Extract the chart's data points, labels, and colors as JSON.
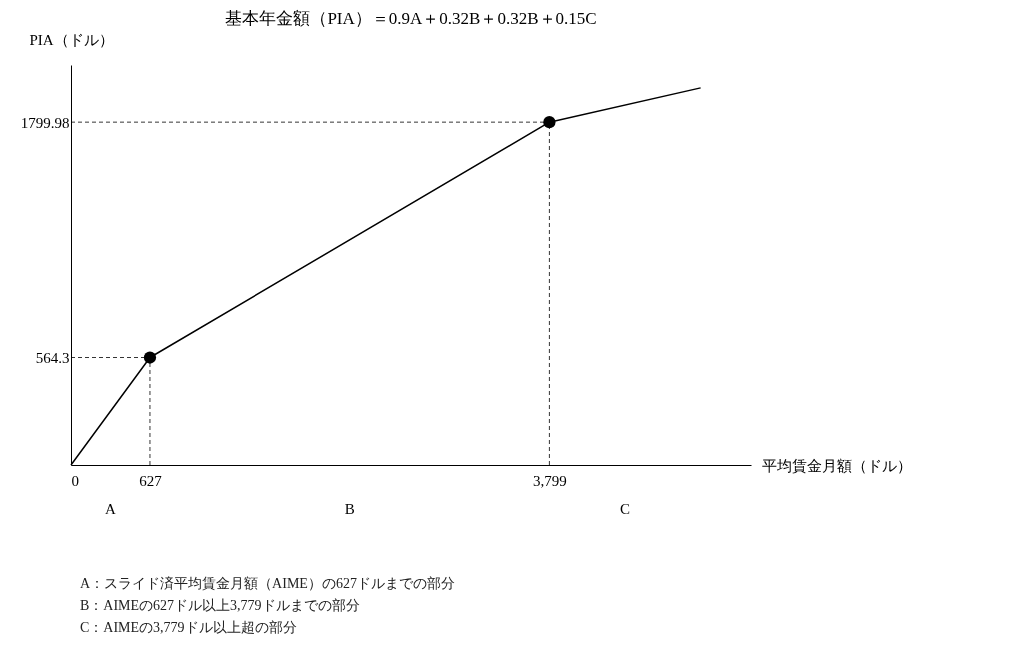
{
  "chart_data": {
    "type": "line",
    "title": "基本年金額（PIA）＝0.9A＋0.32B＋0.32B＋0.15C",
    "xlabel": "平均賃金月額（ドル）",
    "ylabel": "PIA（ドル）",
    "xlim": [
      0,
      5400
    ],
    "ylim": [
      0,
      2100
    ],
    "xticks": [
      0,
      627,
      {
        "value": 3799,
        "label": "3,799"
      }
    ],
    "yticks": [
      564.3,
      1799.98
    ],
    "grid": false,
    "series": [
      {
        "type": "line",
        "color": "#000000",
        "marker": "none",
        "line_style": "solid",
        "x": [
          0,
          627,
          3799,
          5000
        ],
        "values": [
          0,
          564.3,
          1799.98,
          1980
        ]
      },
      {
        "type": "scatter",
        "color": "#000000",
        "marker": "circle",
        "x": [
          627,
          3799
        ],
        "values": [
          564.3,
          1799.98
        ]
      }
    ],
    "ref_lines": [
      {
        "axis": "x",
        "value": 627,
        "line_style": "dashed"
      },
      {
        "axis": "x",
        "value": 3799,
        "line_style": "dashed"
      },
      {
        "axis": "y",
        "value": 564.3,
        "line_style": "dashed"
      },
      {
        "axis": "y",
        "value": 1799.98,
        "line_style": "dashed"
      }
    ],
    "annotations": [
      "A",
      "B",
      "C",
      "A：スライド済平均賃金月額（AIME）の627ドルまでの部分",
      "B：AIMEの627ドル以上3,779ドルまでの部分",
      "C：AIMEの3,779ドル以上超の部分"
    ]
  }
}
